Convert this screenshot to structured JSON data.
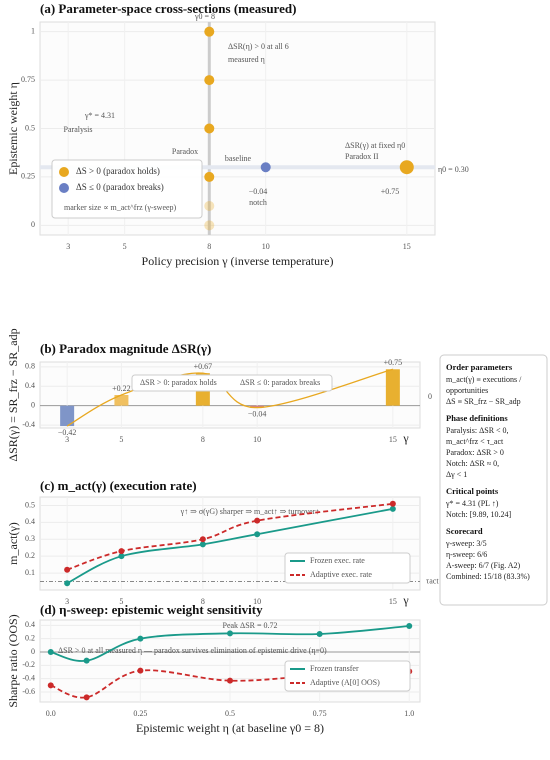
{
  "chart_data": [
    {
      "type": "scatter",
      "title": "(a) Parameter-space cross-sections (measured)",
      "x_label": "Policy precision γ (inverse temperature)",
      "y_label": "Epistemic weight η",
      "xlim": [
        2,
        16
      ],
      "ylim": [
        -0.05,
        1.05
      ],
      "xticks": [
        3,
        5,
        8,
        10,
        15
      ],
      "yticks": [
        0,
        0.25,
        0.5,
        0.75,
        1
      ],
      "series": [
        {
          "name": "ΔS > 0 (paradox holds)",
          "color": "#e8a820",
          "x": [
            8,
            8,
            8,
            8,
            8,
            8,
            15
          ],
          "y": [
            0,
            0.1,
            0.25,
            0.5,
            0.75,
            1,
            0.3
          ]
        },
        {
          "name": "ΔS ≤ 0 (paradox breaks)",
          "color": "#6a7fc4",
          "x": [
            10
          ],
          "y": [
            0.3
          ]
        }
      ],
      "legend_note": "marker size ∝ m_act^frz (γ-sweep)",
      "annotations": [
        "γ0 = 8",
        "ΔSR(η) > 0 at all 6",
        "measured η",
        "γ* = 4.31",
        "Paralysis",
        "Paradox",
        "baseline",
        "ΔSR(γ) at fixed η0",
        "Paradox II",
        "η0 = 0.30",
        "−0.04",
        "notch",
        "+0.75"
      ]
    },
    {
      "type": "bar",
      "title": "(b) Paradox magnitude ΔSR(γ)",
      "y_label": "ΔSR(γ) = SR_frz − SR_adp",
      "x_label": "γ",
      "x": [
        3,
        5,
        8,
        10,
        15
      ],
      "values": [
        -0.42,
        0.22,
        0.67,
        -0.04,
        0.75
      ],
      "value_labels": [
        "−0.42",
        "+0.22",
        "+0.67",
        "−0.04",
        "+0.75"
      ],
      "colors": [
        "#7f95c8",
        "#f0c060",
        "#e8b030",
        "#d88080",
        "#e8b030"
      ],
      "xlim": [
        2,
        16
      ],
      "ylim": [
        -0.46,
        0.9
      ],
      "xticks": [
        3,
        5,
        8,
        10,
        15
      ],
      "yticks": [
        -0.4,
        0,
        0.4,
        0.8
      ],
      "annotations": [
        "ΔSR > 0: paradox holds",
        "ΔSR ≤ 0: paradox breaks",
        "0"
      ]
    },
    {
      "type": "line",
      "title": "(c) m_act(γ) (execution rate)",
      "y_label": "m_act(γ)",
      "x_label": "γ",
      "x": [
        3,
        5,
        8,
        10,
        15
      ],
      "series": [
        {
          "name": "Frozen exec. rate",
          "color": "#1a9a8a",
          "dash": false,
          "values": [
            0.04,
            0.2,
            0.27,
            0.33,
            0.48
          ]
        },
        {
          "name": "Adaptive exec. rate",
          "color": "#cc2a2a",
          "dash": true,
          "values": [
            0.12,
            0.23,
            0.3,
            0.41,
            0.51
          ]
        }
      ],
      "threshold": 0.05,
      "threshold_label": "τact",
      "xlim": [
        2,
        16
      ],
      "ylim": [
        0,
        0.55
      ],
      "xticks": [
        3,
        5,
        8,
        10,
        15
      ],
      "yticks": [
        0.1,
        0.2,
        0.3,
        0.4,
        0.5
      ],
      "annotations": [
        "γ↑ ⇒ σ(γG) sharper ⇒ m_act↑ ⇒ turnover↑"
      ]
    },
    {
      "type": "line",
      "title": "(d) η-sweep: epistemic weight sensitivity",
      "y_label": "Sharpe ratio (OOS)",
      "x_label": "Epistemic weight η (at baseline γ0 = 8)",
      "x": [
        0,
        0.1,
        0.25,
        0.5,
        0.75,
        1
      ],
      "series": [
        {
          "name": "Frozen transfer",
          "color": "#1a9a8a",
          "dash": false,
          "values": [
            0,
            -0.13,
            0.2,
            0.28,
            0.27,
            0.39
          ]
        },
        {
          "name": "Adaptive (A[0] OOS)",
          "color": "#cc2a2a",
          "dash": true,
          "values": [
            -0.5,
            -0.68,
            -0.28,
            -0.43,
            -0.35,
            -0.29
          ]
        }
      ],
      "xlim": [
        -0.03,
        1.03
      ],
      "ylim": [
        -0.75,
        0.48
      ],
      "xticks": [
        {
          "value": 0,
          "label": "0.0"
        },
        0.25,
        0.5,
        0.75,
        {
          "value": 1,
          "label": "1.0"
        }
      ],
      "yticks": [
        -0.6,
        -0.4,
        -0.2,
        0,
        0.2,
        0.4
      ],
      "annotations": [
        "Peak ΔSR = 0.72",
        "ΔSR > 0 at all measured η — paradox survives elimination of epistemic drive (η=0)"
      ]
    }
  ],
  "side_panel": {
    "sections": [
      {
        "heading": "Order parameters",
        "lines": [
          "m_act(γ) ≡ executions /",
          "opportunities",
          "ΔS ≡ SR_frz − SR_adp"
        ]
      },
      {
        "heading": "Phase definitions",
        "lines": [
          "Paralysis: ΔSR < 0,",
          "m_act^frz < τ_act",
          "Paradox: ΔSR > 0",
          "Notch: ΔSR ≈ 0,",
          "Δγ < 1"
        ]
      },
      {
        "heading": "Critical points",
        "lines": [
          "γ* = 4.31 (PL ↑)",
          "Notch: [9.89, 10.24]"
        ]
      },
      {
        "heading": "Scorecard",
        "lines": [
          "γ-sweep: 3/5",
          "η-sweep: 6/6",
          "A-sweep: 6/7 (Fig. A2)",
          "Combined: 15/18 (83.3%)"
        ]
      }
    ]
  }
}
